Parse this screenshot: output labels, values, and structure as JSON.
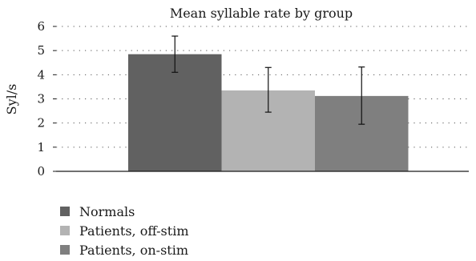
{
  "chart_data": {
    "type": "bar",
    "title": "Mean syllable rate by group",
    "xlabel": "",
    "ylabel": "Syl/s",
    "ylim": [
      0,
      6
    ],
    "yticks": [
      0,
      1,
      2,
      3,
      4,
      5,
      6
    ],
    "grid": true,
    "legend_position": "bottom-left",
    "series": [
      {
        "name": "Normals",
        "value": 4.85,
        "error_low": 4.1,
        "error_high": 5.6,
        "color": "#616161"
      },
      {
        "name": "Patients, off-stim",
        "value": 3.35,
        "error_low": 2.45,
        "error_high": 4.3,
        "color": "#b3b3b3"
      },
      {
        "name": "Patients, on-stim",
        "value": 3.12,
        "error_low": 1.95,
        "error_high": 4.32,
        "color": "#7f7f7f"
      }
    ]
  }
}
